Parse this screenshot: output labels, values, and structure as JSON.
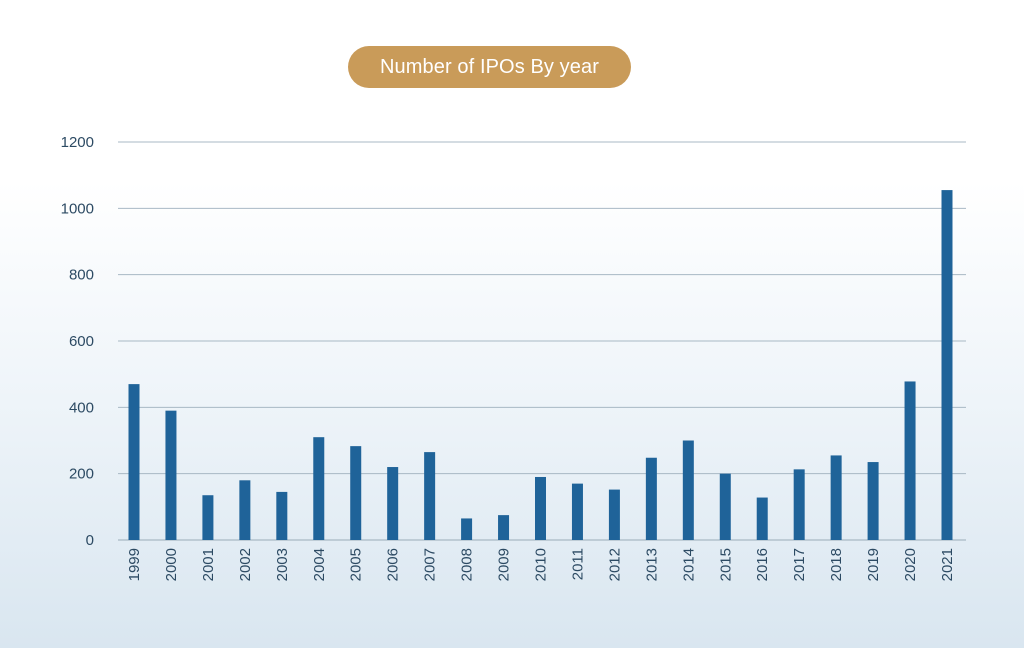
{
  "colors": {
    "bar": "#1f6399",
    "grid": "#a8b8c4",
    "text": "#2c4a63",
    "title_pill": "#c99b59",
    "title_text": "#ffffff"
  },
  "chart_data": {
    "type": "bar",
    "title": "Number of IPOs By year",
    "xlabel": "",
    "ylabel": "",
    "ylim": [
      0,
      1200
    ],
    "yticks": [
      0,
      200,
      400,
      600,
      800,
      1000,
      1200
    ],
    "grid": true,
    "legend": "none",
    "categories": [
      "1999",
      "2000",
      "2001",
      "2002",
      "2003",
      "2004",
      "2005",
      "2006",
      "2007",
      "2008",
      "2009",
      "2010",
      "2011",
      "2012",
      "2013",
      "2014",
      "2015",
      "2016",
      "2017",
      "2018",
      "2019",
      "2020",
      "2021"
    ],
    "values": [
      470,
      390,
      135,
      180,
      145,
      310,
      283,
      220,
      265,
      65,
      75,
      190,
      170,
      152,
      248,
      300,
      200,
      128,
      213,
      255,
      235,
      478,
      1055
    ]
  }
}
